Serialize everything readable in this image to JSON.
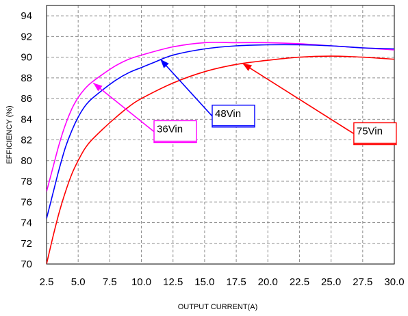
{
  "chart_data": {
    "type": "line",
    "title": "",
    "xlabel": "OUTPUT CURRENT(A)",
    "ylabel": "EFFICIENCY (%)",
    "xlim": [
      2.5,
      30.0
    ],
    "ylim": [
      70,
      95
    ],
    "x_ticks": [
      "2.5",
      "5.0",
      "7.5",
      "10.0",
      "12.5",
      "15.0",
      "17.5",
      "20.0",
      "22.5",
      "25.0",
      "27.5",
      "30.0"
    ],
    "y_ticks": [
      "70",
      "72",
      "74",
      "76",
      "78",
      "80",
      "82",
      "84",
      "86",
      "88",
      "90",
      "92",
      "94"
    ],
    "grid": true,
    "series": [
      {
        "name": "36Vin",
        "color": "#ff00ff",
        "x": [
          2.5,
          3.0,
          3.5,
          4.0,
          4.5,
          5.0,
          5.5,
          6.0,
          7.0,
          8.0,
          9.0,
          10.0,
          12.5,
          15.0,
          17.5,
          20.0,
          22.5,
          25.0,
          27.5,
          30.0
        ],
        "y": [
          77.0,
          79.3,
          81.6,
          83.5,
          85.0,
          86.1,
          86.9,
          87.5,
          88.4,
          89.2,
          89.8,
          90.2,
          91.0,
          91.4,
          91.4,
          91.4,
          91.3,
          91.1,
          90.9,
          90.7
        ]
      },
      {
        "name": "48Vin",
        "color": "#0000ff",
        "x": [
          2.5,
          3.0,
          3.5,
          4.0,
          4.5,
          5.0,
          5.5,
          6.0,
          7.0,
          8.0,
          9.0,
          10.0,
          11.0,
          12.5,
          15.0,
          17.5,
          20.0,
          22.5,
          25.0,
          27.5,
          30.0
        ],
        "y": [
          74.4,
          76.8,
          79.2,
          81.3,
          82.9,
          84.2,
          85.2,
          85.9,
          86.9,
          87.8,
          88.5,
          89.0,
          89.5,
          90.2,
          90.8,
          91.1,
          91.2,
          91.2,
          91.1,
          90.9,
          90.8
        ]
      },
      {
        "name": "75Vin",
        "color": "#ff0000",
        "x": [
          2.5,
          3.0,
          3.5,
          4.0,
          4.5,
          5.0,
          5.5,
          6.0,
          7.0,
          8.0,
          9.0,
          10.0,
          12.5,
          15.0,
          17.5,
          20.0,
          22.5,
          25.0,
          27.5,
          30.0
        ],
        "y": [
          70.0,
          72.6,
          75.0,
          77.0,
          78.7,
          80.0,
          81.1,
          81.9,
          83.1,
          84.2,
          85.2,
          86.0,
          87.5,
          88.6,
          89.3,
          89.7,
          90.0,
          90.1,
          90.0,
          89.8
        ]
      }
    ],
    "callouts": [
      {
        "series": "36Vin",
        "text": "36Vin",
        "point": [
          6.2,
          87.5
        ],
        "label_at": [
          11.0,
          82.8
        ]
      },
      {
        "series": "48Vin",
        "text": "48Vin",
        "point": [
          11.5,
          89.8
        ],
        "label_at": [
          15.6,
          84.3
        ]
      },
      {
        "series": "75Vin",
        "text": "75Vin",
        "point": [
          18.0,
          89.4
        ],
        "label_at": [
          26.8,
          82.6
        ]
      }
    ]
  }
}
